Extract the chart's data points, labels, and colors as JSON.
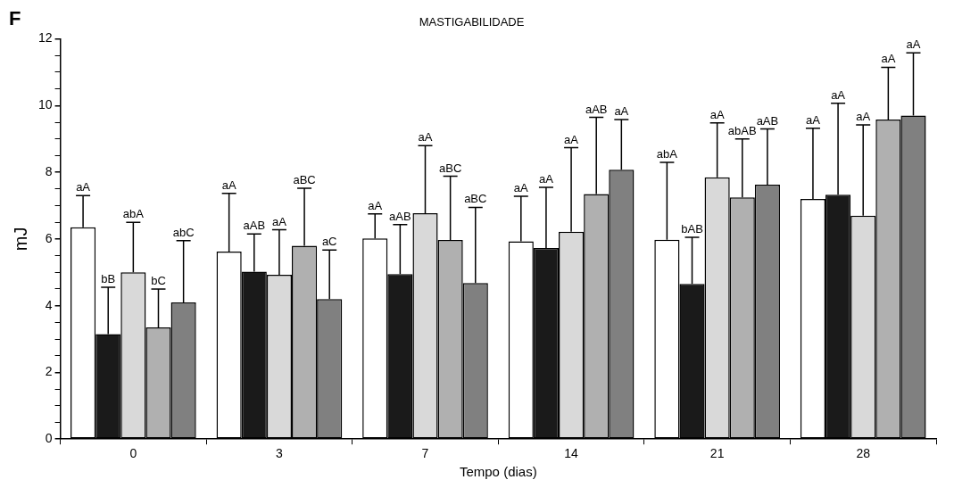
{
  "chart_data": {
    "type": "bar",
    "title": "MASTIGABILIDADE",
    "xlabel": "Tempo (dias)",
    "ylabel": "mJ",
    "categories": [
      "0",
      "3",
      "7",
      "14",
      "21",
      "28"
    ],
    "series": [
      {
        "color": "#ffffff",
        "values": [
          6.35,
          5.62,
          6.02,
          5.93,
          5.98,
          7.2
        ],
        "errors": [
          [
            6.35,
            7.3
          ],
          [
            5.62,
            7.37
          ],
          [
            6.02,
            6.75
          ],
          [
            5.93,
            7.28
          ],
          [
            5.98,
            8.3
          ],
          [
            7.2,
            9.32
          ]
        ]
      },
      {
        "color": "#1a1a1a",
        "values": [
          3.15,
          5.02,
          4.95,
          5.73,
          4.65,
          7.33
        ],
        "errors": [
          [
            3.15,
            4.55
          ],
          [
            5.02,
            6.15
          ],
          [
            4.95,
            6.43
          ],
          [
            5.73,
            7.55
          ],
          [
            4.65,
            6.05
          ],
          [
            7.33,
            10.07
          ]
        ]
      },
      {
        "color": "#d9d9d9",
        "values": [
          5.0,
          4.93,
          6.77,
          6.22,
          7.85,
          6.7
        ],
        "errors": [
          [
            5.0,
            6.5
          ],
          [
            4.93,
            6.28
          ],
          [
            6.77,
            8.8
          ],
          [
            6.22,
            8.74
          ],
          [
            7.85,
            9.48
          ],
          [
            6.7,
            9.42
          ]
        ]
      },
      {
        "color": "#b0b0b0",
        "values": [
          3.35,
          5.8,
          5.97,
          7.35,
          7.25,
          9.58
        ],
        "errors": [
          [
            3.35,
            4.5
          ],
          [
            5.8,
            7.52
          ],
          [
            5.97,
            7.88
          ],
          [
            7.35,
            9.65
          ],
          [
            7.25,
            9.0
          ],
          [
            9.58,
            11.15
          ]
        ]
      },
      {
        "color": "#808080",
        "values": [
          4.1,
          4.2,
          4.68,
          8.08,
          7.63,
          9.7
        ],
        "errors": [
          [
            4.1,
            5.95
          ],
          [
            4.2,
            5.67
          ],
          [
            4.68,
            6.95
          ],
          [
            8.08,
            9.58
          ],
          [
            7.63,
            9.3
          ],
          [
            9.7,
            11.58
          ]
        ]
      }
    ],
    "ylim": [
      0,
      12
    ],
    "yticks": [
      0,
      {
        "value": 0.5,
        "label": null
      },
      {
        "value": 1,
        "label": null
      },
      {
        "value": 1.5,
        "label": null
      },
      2,
      {
        "value": 2.5,
        "label": null
      },
      {
        "value": 3,
        "label": null
      },
      {
        "value": 3.5,
        "label": null
      },
      4,
      {
        "value": 4.5,
        "label": null
      },
      {
        "value": 5,
        "label": null
      },
      {
        "value": 5.5,
        "label": null
      },
      6,
      {
        "value": 6.5,
        "label": null
      },
      {
        "value": 7,
        "label": null
      },
      {
        "value": 7.5,
        "label": null
      },
      8,
      {
        "value": 8.5,
        "label": null
      },
      {
        "value": 9,
        "label": null
      },
      {
        "value": 9.5,
        "label": null
      },
      10,
      {
        "value": 10.5,
        "label": null
      },
      {
        "value": 11,
        "label": null
      },
      {
        "value": 11.5,
        "label": null
      },
      12
    ],
    "legend": false,
    "annotations": [
      "F",
      "aA",
      "bB",
      "abA",
      "bC",
      "abC",
      "aA",
      "aAB",
      "aA",
      "aBC",
      "aC",
      "aA",
      "aAB",
      "aA",
      "aBC",
      "aBC",
      "aA",
      "aA",
      "aA",
      "aAB",
      "aA",
      "abA",
      "bAB",
      "aA",
      "abAB",
      "aAB",
      "aA",
      "aA",
      "aA",
      "aA",
      "aA"
    ]
  }
}
